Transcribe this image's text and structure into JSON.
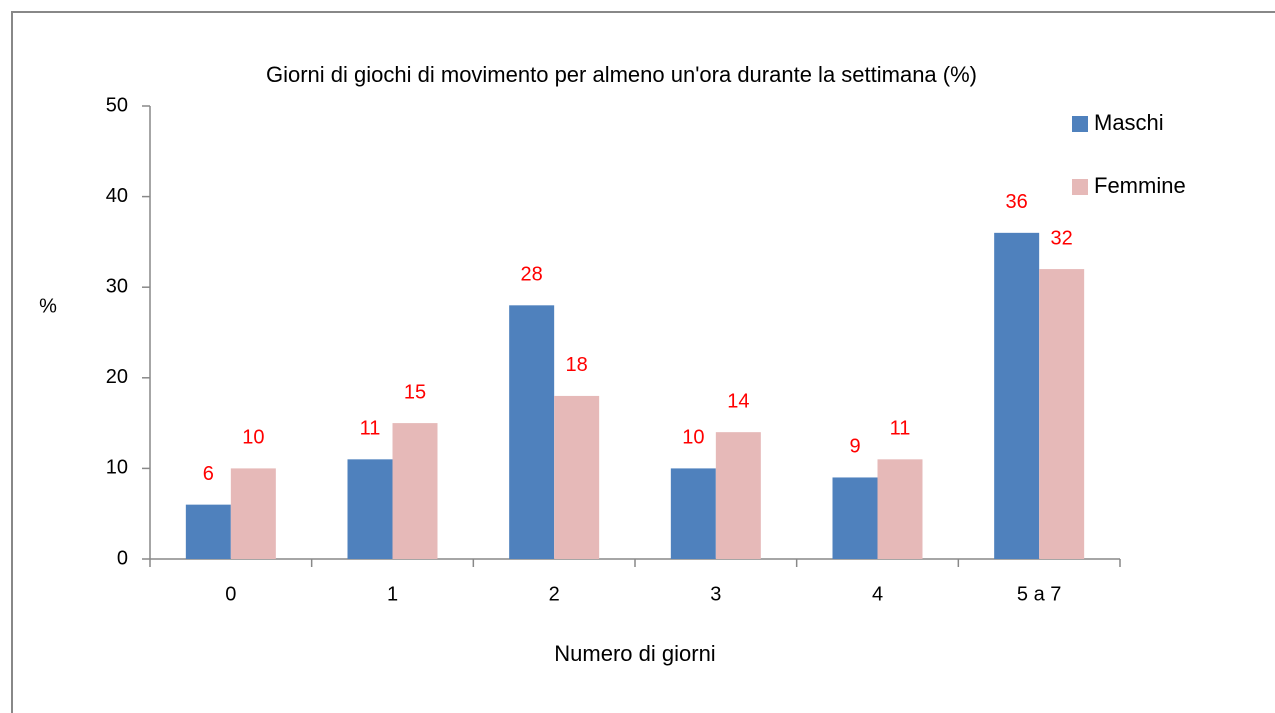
{
  "chart_data": {
    "type": "bar",
    "title": "Giorni di giochi di movimento per almeno un'ora durante la settimana (%)",
    "x_label": "Numero di giorni",
    "y_label": "%",
    "categories": [
      "0",
      "1",
      "2",
      "3",
      "4",
      "5 a 7"
    ],
    "series": [
      {
        "name": "Maschi",
        "color": "#4f81bd",
        "values": [
          6,
          11,
          28,
          10,
          9,
          36
        ]
      },
      {
        "name": "Femmine",
        "color": "#e6b9b8",
        "values": [
          10,
          15,
          18,
          14,
          11,
          32
        ]
      }
    ],
    "ylim": [
      0,
      50
    ],
    "yticks": [
      0,
      10,
      20,
      30,
      40,
      50
    ],
    "value_label_color": "#ff0000",
    "legend": "right"
  }
}
